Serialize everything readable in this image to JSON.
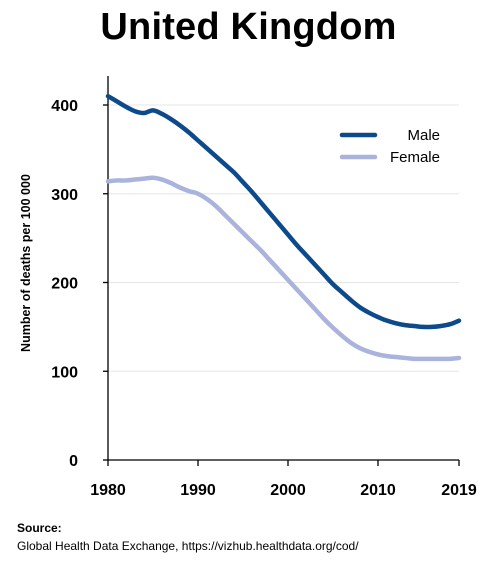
{
  "chart_data": {
    "type": "line",
    "title": "United Kingdom",
    "xlabel": "",
    "ylabel": "Number of deaths per 100 000",
    "x_ticks": [
      1980,
      1990,
      2000,
      2010,
      2019
    ],
    "y_ticks": [
      0,
      100,
      200,
      300,
      400
    ],
    "xlim": [
      1980,
      2019
    ],
    "ylim": [
      0,
      420
    ],
    "grid": true,
    "legend_position": "top-right",
    "series": [
      {
        "name": "Male",
        "color": "#0d4a8c",
        "x": [
          1980,
          1981,
          1982,
          1983,
          1984,
          1985,
          1986,
          1987,
          1988,
          1989,
          1990,
          1991,
          1992,
          1993,
          1994,
          1995,
          1996,
          1997,
          1998,
          1999,
          2000,
          2001,
          2002,
          2003,
          2004,
          2005,
          2006,
          2007,
          2008,
          2009,
          2010,
          2011,
          2012,
          2013,
          2014,
          2015,
          2016,
          2017,
          2018,
          2019
        ],
        "values": [
          410,
          404,
          398,
          393,
          391,
          394,
          390,
          384,
          377,
          369,
          360,
          351,
          342,
          333,
          324,
          313,
          302,
          290,
          278,
          266,
          254,
          242,
          231,
          220,
          209,
          198,
          189,
          180,
          172,
          166,
          161,
          157,
          154,
          152,
          151,
          150,
          150,
          151,
          153,
          157
        ]
      },
      {
        "name": "Female",
        "color": "#a9b3dc",
        "x": [
          1980,
          1981,
          1982,
          1983,
          1984,
          1985,
          1986,
          1987,
          1988,
          1989,
          1990,
          1991,
          1992,
          1993,
          1994,
          1995,
          1996,
          1997,
          1998,
          1999,
          2000,
          2001,
          2002,
          2003,
          2004,
          2005,
          2006,
          2007,
          2008,
          2009,
          2010,
          2011,
          2012,
          2013,
          2014,
          2015,
          2016,
          2017,
          2018,
          2019
        ],
        "values": [
          314,
          315,
          315,
          316,
          317,
          318,
          316,
          312,
          307,
          303,
          300,
          294,
          286,
          276,
          266,
          256,
          246,
          236,
          225,
          214,
          203,
          192,
          181,
          170,
          159,
          149,
          140,
          132,
          126,
          122,
          119,
          117,
          116,
          115,
          114,
          114,
          114,
          114,
          114,
          115
        ]
      }
    ]
  },
  "source": {
    "heading": "Source:",
    "text": "Global Health Data Exchange, https://vizhub.healthdata.org/cod/"
  }
}
